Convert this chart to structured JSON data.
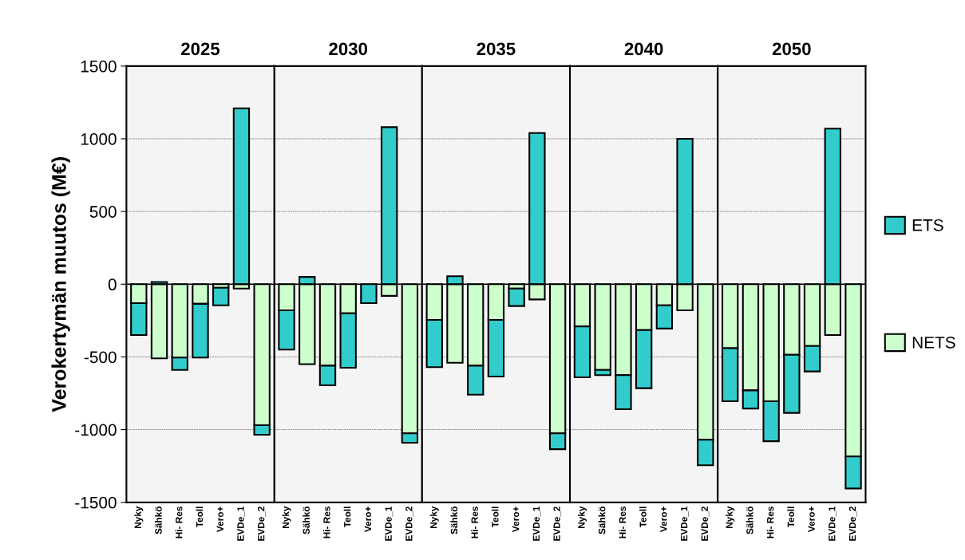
{
  "chart_data": [
    {
      "type": "bar",
      "title": "2025",
      "ylabel": "Verokertymän muutos (M€)",
      "categories": [
        "Nyky",
        "Sähkö",
        "Hi- Res",
        "Teoll",
        "Vero+",
        "EVDe_1",
        "EVDe_2"
      ],
      "stacked": true,
      "ylim": [
        -1500,
        1500
      ],
      "yticks": [
        -1500,
        -1000,
        -500,
        0,
        500,
        1000,
        1500
      ],
      "grid": "y",
      "legend": "right",
      "series": [
        {
          "name": "NETS",
          "color": "#ccffcc",
          "values": [
            -130,
            -510,
            -505,
            -135,
            -25,
            -30,
            -970
          ]
        },
        {
          "name": "ETS",
          "color": "#33cccc",
          "values": [
            -220,
            15,
            -85,
            -370,
            -120,
            1210,
            -65
          ]
        }
      ]
    },
    {
      "type": "bar",
      "title": "2030",
      "categories": [
        "Nyky",
        "Sähkö",
        "Hi- Res",
        "Teoll",
        "Vero+",
        "EVDe_1",
        "EVDe_2"
      ],
      "stacked": true,
      "ylim": [
        -1500,
        1500
      ],
      "yticks": [
        -1500,
        -1000,
        -500,
        0,
        500,
        1000,
        1500
      ],
      "grid": "y",
      "tick_labels": "x",
      "series": [
        {
          "color": "#ccffcc",
          "values": [
            -180,
            -550,
            -560,
            -200,
            null,
            -80,
            -1025
          ]
        },
        {
          "color": "#33cccc",
          "values": [
            -270,
            50,
            -135,
            -375,
            -130,
            1080,
            -65
          ]
        }
      ]
    },
    {
      "type": "bar",
      "title": "2035",
      "categories": [
        "Nyky",
        "Sähkö",
        "Hi- Res",
        "Teoll",
        "Vero+",
        "EVDe_1",
        "EVDe_2"
      ],
      "stacked": true,
      "ylim": [
        -1500,
        1500
      ],
      "yticks": [
        -1500,
        -1000,
        -500,
        0,
        500,
        1000,
        1500
      ],
      "grid": "y",
      "tick_labels": "x",
      "series": [
        {
          "color": "#ccffcc",
          "values": [
            -245,
            -540,
            -560,
            -245,
            -30,
            -105,
            -1025
          ]
        },
        {
          "color": "#33cccc",
          "values": [
            -325,
            55,
            -200,
            -390,
            -120,
            1040,
            -110
          ]
        }
      ]
    },
    {
      "type": "bar",
      "title": "2040",
      "categories": [
        "Nyky",
        "Sähkö",
        "Hi- Res",
        "Teoll",
        "Vero+",
        "EVDe_1",
        "EVDe_2"
      ],
      "stacked": true,
      "ylim": [
        -1500,
        1500
      ],
      "yticks": [
        -1500,
        -1000,
        -500,
        0,
        500,
        1000,
        1500
      ],
      "grid": "y",
      "tick_labels": "x",
      "series": [
        {
          "color": "#ccffcc",
          "values": [
            -290,
            -590,
            -625,
            -315,
            -145,
            -180,
            -1070
          ]
        },
        {
          "color": "#33cccc",
          "values": [
            -350,
            -35,
            -235,
            -400,
            -160,
            1000,
            -175
          ]
        }
      ]
    },
    {
      "type": "bar",
      "title": "2050",
      "categories": [
        "Nyky",
        "Sähkö",
        "Hi- Res",
        "Teoll",
        "Vero+",
        "EVDe_1",
        "EVDe_2"
      ],
      "stacked": true,
      "ylim": [
        -1500,
        1500
      ],
      "yticks": [
        -1500,
        -1000,
        -500,
        0,
        500,
        1000,
        1500
      ],
      "grid": "y",
      "tick_labels": "x",
      "series": [
        {
          "color": "#ccffcc",
          "values": [
            -440,
            -730,
            -805,
            -485,
            -425,
            -350,
            -1185
          ]
        },
        {
          "color": "#33cccc",
          "values": [
            -365,
            -125,
            -275,
            -400,
            -175,
            1070,
            -220
          ]
        }
      ]
    }
  ]
}
